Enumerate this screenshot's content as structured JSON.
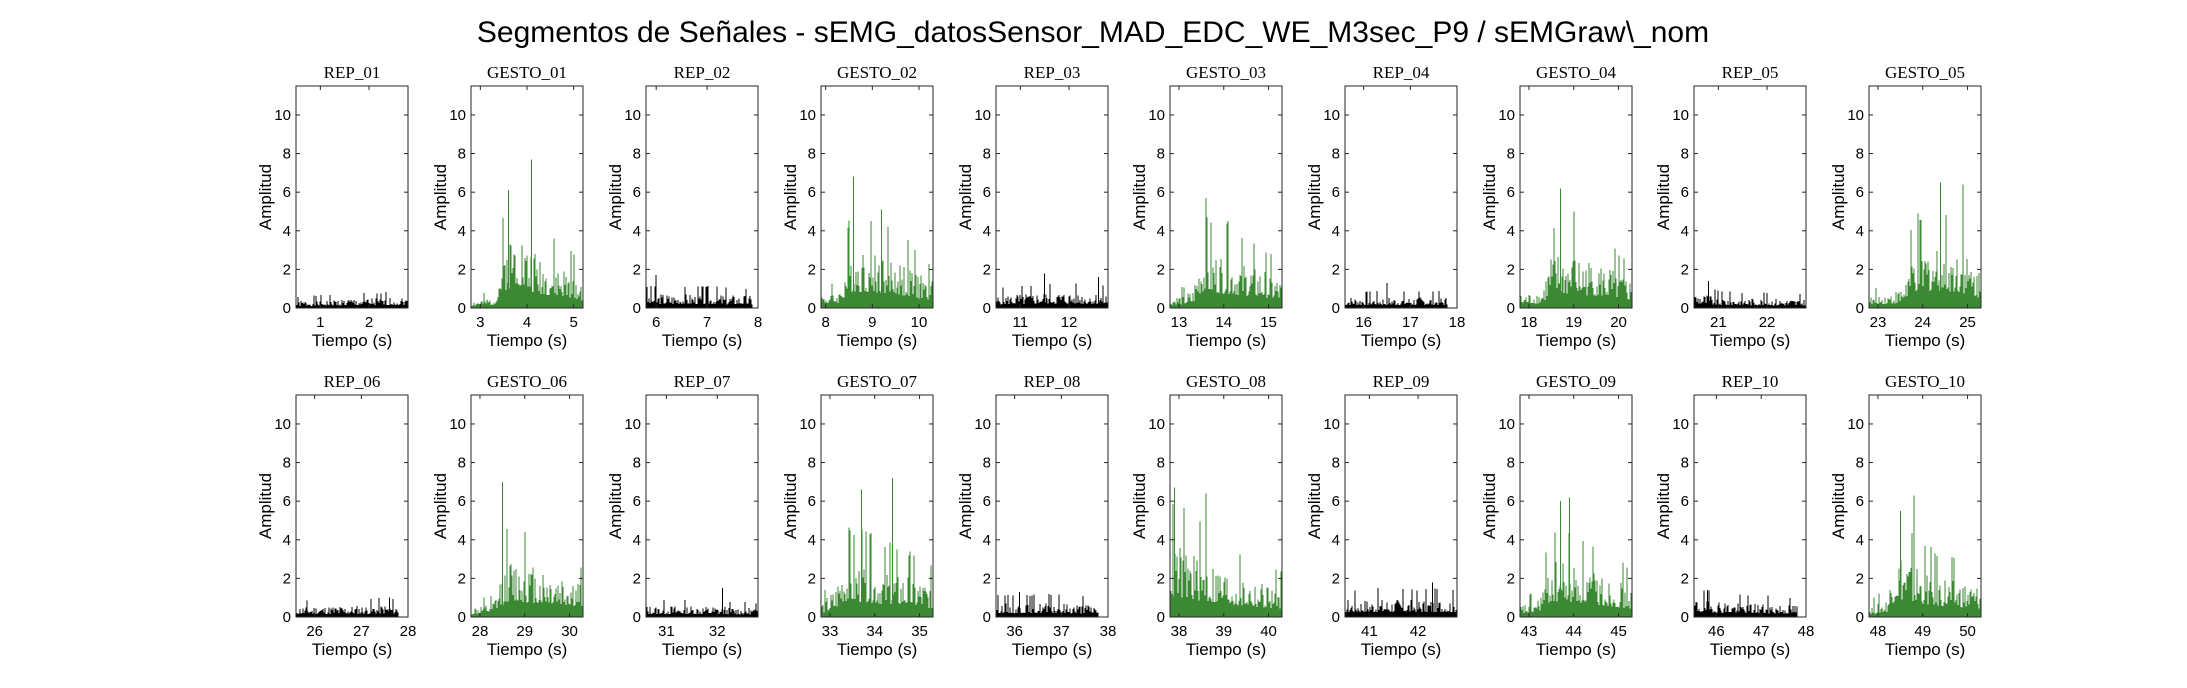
{
  "figure": {
    "title": "Segmentos de Señales - sEMG_datosSensor_MAD_EDC_WE_M3sec_P9 / sEMGraw\\_nom"
  },
  "chart_data": [
    {
      "type": "bar",
      "title": "REP_01",
      "kind": "rep",
      "xlabel": "Tiempo (s)",
      "ylabel": "Amplitud",
      "xlim": [
        0.5,
        2.8
      ],
      "ylim": [
        0,
        11.5
      ],
      "xticks": [
        1,
        2
      ],
      "yticks": [
        0,
        2,
        4,
        6,
        8,
        10
      ],
      "segment": [
        0.5,
        2.8
      ],
      "envelope": [
        [
          0.5,
          0.4
        ],
        [
          1.5,
          0.5
        ],
        [
          2.8,
          0.6
        ]
      ],
      "peaks": [],
      "color": "#000000"
    },
    {
      "type": "bar",
      "title": "GESTO_01",
      "kind": "gesto",
      "xlabel": "Tiempo (s)",
      "ylabel": "Amplitud",
      "xlim": [
        2.8,
        5.2
      ],
      "ylim": [
        0,
        11.5
      ],
      "xticks": [
        3,
        4,
        5
      ],
      "yticks": [
        0,
        2,
        4,
        6,
        8,
        10
      ],
      "segment": [
        2.8,
        5.2
      ],
      "envelope": [
        [
          2.8,
          0.4
        ],
        [
          3.3,
          0.6
        ],
        [
          3.5,
          3.5
        ],
        [
          3.8,
          5.0
        ],
        [
          4.0,
          3.5
        ],
        [
          4.5,
          2.5
        ],
        [
          5.0,
          2.0
        ],
        [
          5.2,
          1.5
        ]
      ],
      "peaks": [
        [
          3.6,
          6.1
        ],
        [
          4.1,
          7.7
        ]
      ],
      "color": "#3b8a33"
    },
    {
      "type": "bar",
      "title": "REP_02",
      "kind": "rep",
      "xlabel": "Tiempo (s)",
      "ylabel": "Amplitud",
      "xlim": [
        5.8,
        8.0
      ],
      "ylim": [
        0,
        11.5
      ],
      "xticks": [
        6,
        7,
        8
      ],
      "yticks": [
        0,
        2,
        4,
        6,
        8,
        10
      ],
      "segment": [
        5.8,
        7.9
      ],
      "envelope": [
        [
          5.8,
          0.8
        ],
        [
          7.0,
          0.8
        ],
        [
          7.9,
          0.7
        ]
      ],
      "peaks": [
        [
          6.0,
          1.7
        ]
      ],
      "color": "#000000"
    },
    {
      "type": "bar",
      "title": "GESTO_02",
      "kind": "gesto",
      "xlabel": "Tiempo (s)",
      "ylabel": "Amplitud",
      "xlim": [
        7.9,
        10.3
      ],
      "ylim": [
        0,
        11.5
      ],
      "xticks": [
        8,
        9,
        10
      ],
      "yticks": [
        0,
        2,
        4,
        6,
        8,
        10
      ],
      "segment": [
        7.9,
        10.3
      ],
      "envelope": [
        [
          7.9,
          0.8
        ],
        [
          8.3,
          1.0
        ],
        [
          8.5,
          3.3
        ],
        [
          9.0,
          3.3
        ],
        [
          9.5,
          2.8
        ],
        [
          10.0,
          2.0
        ],
        [
          10.3,
          1.5
        ]
      ],
      "peaks": [
        [
          8.6,
          6.8
        ],
        [
          9.2,
          5.1
        ]
      ],
      "color": "#3b8a33"
    },
    {
      "type": "bar",
      "title": "REP_03",
      "kind": "rep",
      "xlabel": "Tiempo (s)",
      "ylabel": "Amplitud",
      "xlim": [
        10.5,
        12.8
      ],
      "ylim": [
        0,
        11.5
      ],
      "xticks": [
        11,
        12
      ],
      "yticks": [
        0,
        2,
        4,
        6,
        8,
        10
      ],
      "segment": [
        10.5,
        12.8
      ],
      "envelope": [
        [
          10.5,
          0.7
        ],
        [
          11.6,
          0.9
        ],
        [
          12.8,
          0.8
        ]
      ],
      "peaks": [
        [
          11.5,
          1.8
        ],
        [
          12.6,
          1.6
        ]
      ],
      "color": "#000000"
    },
    {
      "type": "bar",
      "title": "GESTO_03",
      "kind": "gesto",
      "xlabel": "Tiempo (s)",
      "ylabel": "Amplitud",
      "xlim": [
        12.8,
        15.3
      ],
      "ylim": [
        0,
        11.5
      ],
      "xticks": [
        13,
        14,
        15
      ],
      "yticks": [
        0,
        2,
        4,
        6,
        8,
        10
      ],
      "segment": [
        12.8,
        15.3
      ],
      "envelope": [
        [
          12.8,
          0.6
        ],
        [
          13.3,
          0.9
        ],
        [
          13.5,
          3.3
        ],
        [
          14.0,
          3.0
        ],
        [
          14.5,
          2.5
        ],
        [
          15.0,
          2.0
        ],
        [
          15.3,
          1.5
        ]
      ],
      "peaks": [
        [
          13.6,
          5.7
        ],
        [
          14.1,
          4.5
        ]
      ],
      "color": "#3b8a33"
    },
    {
      "type": "bar",
      "title": "REP_04",
      "kind": "rep",
      "xlabel": "Tiempo (s)",
      "ylabel": "Amplitud",
      "xlim": [
        15.6,
        18.0
      ],
      "ylim": [
        0,
        11.5
      ],
      "xticks": [
        16,
        17,
        18
      ],
      "yticks": [
        0,
        2,
        4,
        6,
        8,
        10
      ],
      "segment": [
        15.6,
        17.8
      ],
      "envelope": [
        [
          15.6,
          0.6
        ],
        [
          16.7,
          0.6
        ],
        [
          17.8,
          0.6
        ]
      ],
      "peaks": [
        [
          16.5,
          1.3
        ]
      ],
      "color": "#000000"
    },
    {
      "type": "bar",
      "title": "GESTO_04",
      "kind": "gesto",
      "xlabel": "Tiempo (s)",
      "ylabel": "Amplitud",
      "xlim": [
        17.8,
        20.3
      ],
      "ylim": [
        0,
        11.5
      ],
      "xticks": [
        18,
        19,
        20
      ],
      "yticks": [
        0,
        2,
        4,
        6,
        8,
        10
      ],
      "segment": [
        17.8,
        20.3
      ],
      "envelope": [
        [
          17.8,
          0.7
        ],
        [
          18.3,
          1.0
        ],
        [
          18.5,
          3.0
        ],
        [
          19.0,
          2.8
        ],
        [
          19.5,
          2.5
        ],
        [
          20.0,
          2.0
        ],
        [
          20.3,
          1.5
        ]
      ],
      "peaks": [
        [
          18.7,
          6.2
        ],
        [
          19.0,
          5.0
        ]
      ],
      "color": "#3b8a33"
    },
    {
      "type": "bar",
      "title": "REP_05",
      "kind": "rep",
      "xlabel": "Tiempo (s)",
      "ylabel": "Amplitud",
      "xlim": [
        20.5,
        22.8
      ],
      "ylim": [
        0,
        11.5
      ],
      "xticks": [
        21,
        22
      ],
      "yticks": [
        0,
        2,
        4,
        6,
        8,
        10
      ],
      "segment": [
        20.5,
        22.8
      ],
      "envelope": [
        [
          20.5,
          0.9
        ],
        [
          21.0,
          0.6
        ],
        [
          22.8,
          0.5
        ]
      ],
      "peaks": [
        [
          20.8,
          1.4
        ]
      ],
      "color": "#000000"
    },
    {
      "type": "bar",
      "title": "GESTO_05",
      "kind": "gesto",
      "xlabel": "Tiempo (s)",
      "ylabel": "Amplitud",
      "xlim": [
        22.8,
        25.3
      ],
      "ylim": [
        0,
        11.5
      ],
      "xticks": [
        23,
        24,
        25
      ],
      "yticks": [
        0,
        2,
        4,
        6,
        8,
        10
      ],
      "segment": [
        22.8,
        25.3
      ],
      "envelope": [
        [
          22.8,
          0.6
        ],
        [
          23.5,
          1.0
        ],
        [
          23.8,
          3.2
        ],
        [
          24.3,
          3.6
        ],
        [
          24.8,
          3.3
        ],
        [
          25.3,
          2.0
        ]
      ],
      "peaks": [
        [
          24.4,
          6.5
        ],
        [
          24.9,
          6.4
        ]
      ],
      "color": "#3b8a33"
    },
    {
      "type": "bar",
      "title": "REP_06",
      "kind": "rep",
      "xlabel": "Tiempo (s)",
      "ylabel": "Amplitud",
      "xlim": [
        25.6,
        28.0
      ],
      "ylim": [
        0,
        11.5
      ],
      "xticks": [
        26,
        27,
        28
      ],
      "yticks": [
        0,
        2,
        4,
        6,
        8,
        10
      ],
      "segment": [
        25.6,
        27.8
      ],
      "envelope": [
        [
          25.6,
          0.6
        ],
        [
          26.7,
          0.6
        ],
        [
          27.8,
          0.7
        ]
      ],
      "peaks": [
        [
          27.6,
          1.0
        ]
      ],
      "color": "#000000"
    },
    {
      "type": "bar",
      "title": "GESTO_06",
      "kind": "gesto",
      "xlabel": "Tiempo (s)",
      "ylabel": "Amplitud",
      "xlim": [
        27.8,
        30.3
      ],
      "ylim": [
        0,
        11.5
      ],
      "xticks": [
        28,
        29,
        30
      ],
      "yticks": [
        0,
        2,
        4,
        6,
        8,
        10
      ],
      "segment": [
        27.8,
        30.3
      ],
      "envelope": [
        [
          27.8,
          0.5
        ],
        [
          28.3,
          0.8
        ],
        [
          28.6,
          3.2
        ],
        [
          29.0,
          3.0
        ],
        [
          29.5,
          2.6
        ],
        [
          30.0,
          2.3
        ],
        [
          30.3,
          1.8
        ]
      ],
      "peaks": [
        [
          28.5,
          7.0
        ],
        [
          29.0,
          4.4
        ]
      ],
      "color": "#3b8a33"
    },
    {
      "type": "bar",
      "title": "REP_07",
      "kind": "rep",
      "xlabel": "Tiempo (s)",
      "ylabel": "Amplitud",
      "xlim": [
        30.6,
        32.8
      ],
      "ylim": [
        0,
        11.5
      ],
      "xticks": [
        31,
        32
      ],
      "yticks": [
        0,
        2,
        4,
        6,
        8,
        10
      ],
      "segment": [
        30.6,
        32.8
      ],
      "envelope": [
        [
          30.6,
          0.6
        ],
        [
          31.7,
          0.6
        ],
        [
          32.8,
          0.5
        ]
      ],
      "peaks": [
        [
          32.1,
          1.5
        ]
      ],
      "color": "#000000"
    },
    {
      "type": "bar",
      "title": "GESTO_07",
      "kind": "gesto",
      "xlabel": "Tiempo (s)",
      "ylabel": "Amplitud",
      "xlim": [
        32.8,
        35.3
      ],
      "ylim": [
        0,
        11.5
      ],
      "xticks": [
        33,
        34,
        35
      ],
      "yticks": [
        0,
        2,
        4,
        6,
        8,
        10
      ],
      "segment": [
        32.8,
        35.3
      ],
      "envelope": [
        [
          32.8,
          0.8
        ],
        [
          33.1,
          1.5
        ],
        [
          33.3,
          3.2
        ],
        [
          33.8,
          3.0
        ],
        [
          34.3,
          2.6
        ],
        [
          34.8,
          2.3
        ],
        [
          35.3,
          1.8
        ]
      ],
      "peaks": [
        [
          33.7,
          6.6
        ],
        [
          34.4,
          7.2
        ]
      ],
      "color": "#3b8a33"
    },
    {
      "type": "bar",
      "title": "REP_08",
      "kind": "rep",
      "xlabel": "Tiempo (s)",
      "ylabel": "Amplitud",
      "xlim": [
        35.6,
        38.0
      ],
      "ylim": [
        0,
        11.5
      ],
      "xticks": [
        36,
        37,
        38
      ],
      "yticks": [
        0,
        2,
        4,
        6,
        8,
        10
      ],
      "segment": [
        35.6,
        37.8
      ],
      "envelope": [
        [
          35.6,
          0.8
        ],
        [
          36.7,
          0.8
        ],
        [
          37.8,
          0.7
        ]
      ],
      "peaks": [
        [
          36.1,
          1.3
        ]
      ],
      "color": "#000000"
    },
    {
      "type": "bar",
      "title": "GESTO_08",
      "kind": "gesto",
      "xlabel": "Tiempo (s)",
      "ylabel": "Amplitud",
      "xlim": [
        37.8,
        40.3
      ],
      "ylim": [
        0,
        11.5
      ],
      "xticks": [
        38,
        39,
        40
      ],
      "yticks": [
        0,
        2,
        4,
        6,
        8,
        10
      ],
      "segment": [
        37.8,
        40.3
      ],
      "envelope": [
        [
          37.8,
          4.2
        ],
        [
          38.2,
          3.8
        ],
        [
          38.7,
          3.0
        ],
        [
          39.2,
          2.4
        ],
        [
          39.7,
          2.0
        ],
        [
          40.3,
          1.7
        ]
      ],
      "peaks": [
        [
          37.9,
          6.7
        ],
        [
          38.6,
          6.4
        ]
      ],
      "color": "#3b8a33"
    },
    {
      "type": "bar",
      "title": "REP_09",
      "kind": "rep",
      "xlabel": "Tiempo (s)",
      "ylabel": "Amplitud",
      "xlim": [
        40.5,
        42.8
      ],
      "ylim": [
        0,
        11.5
      ],
      "xticks": [
        41,
        42
      ],
      "yticks": [
        0,
        2,
        4,
        6,
        8,
        10
      ],
      "segment": [
        40.5,
        42.8
      ],
      "envelope": [
        [
          40.5,
          1.0
        ],
        [
          41.6,
          1.0
        ],
        [
          42.8,
          1.0
        ]
      ],
      "peaks": [
        [
          42.3,
          1.8
        ]
      ],
      "color": "#000000"
    },
    {
      "type": "bar",
      "title": "GESTO_09",
      "kind": "gesto",
      "xlabel": "Tiempo (s)",
      "ylabel": "Amplitud",
      "xlim": [
        42.8,
        45.3
      ],
      "ylim": [
        0,
        11.5
      ],
      "xticks": [
        43,
        44,
        45
      ],
      "yticks": [
        0,
        2,
        4,
        6,
        8,
        10
      ],
      "segment": [
        42.8,
        45.3
      ],
      "envelope": [
        [
          42.8,
          0.6
        ],
        [
          43.2,
          1.0
        ],
        [
          43.5,
          3.2
        ],
        [
          44.0,
          3.0
        ],
        [
          44.5,
          2.5
        ],
        [
          45.0,
          2.0
        ],
        [
          45.3,
          1.7
        ]
      ],
      "peaks": [
        [
          43.7,
          6.0
        ],
        [
          43.9,
          6.2
        ]
      ],
      "color": "#3b8a33"
    },
    {
      "type": "bar",
      "title": "REP_10",
      "kind": "rep",
      "xlabel": "Tiempo (s)",
      "ylabel": "Amplitud",
      "xlim": [
        45.5,
        48.0
      ],
      "ylim": [
        0,
        11.5
      ],
      "xticks": [
        46,
        47,
        48
      ],
      "yticks": [
        0,
        2,
        4,
        6,
        8,
        10
      ],
      "segment": [
        45.5,
        47.8
      ],
      "envelope": [
        [
          45.5,
          1.0
        ],
        [
          46.5,
          0.8
        ],
        [
          47.8,
          0.7
        ]
      ],
      "peaks": [
        [
          45.8,
          1.4
        ]
      ],
      "color": "#000000"
    },
    {
      "type": "bar",
      "title": "GESTO_10",
      "kind": "gesto",
      "xlabel": "Tiempo (s)",
      "ylabel": "Amplitud",
      "xlim": [
        47.8,
        50.3
      ],
      "ylim": [
        0,
        11.5
      ],
      "xticks": [
        48,
        49,
        50
      ],
      "yticks": [
        0,
        2,
        4,
        6,
        8,
        10
      ],
      "segment": [
        47.8,
        50.3
      ],
      "envelope": [
        [
          47.8,
          0.6
        ],
        [
          48.2,
          1.0
        ],
        [
          48.4,
          3.8
        ],
        [
          48.7,
          3.2
        ],
        [
          49.2,
          2.4
        ],
        [
          49.8,
          2.0
        ],
        [
          50.3,
          1.7
        ]
      ],
      "peaks": [
        [
          48.5,
          5.5
        ],
        [
          48.8,
          6.3
        ]
      ],
      "color": "#3b8a33"
    }
  ]
}
